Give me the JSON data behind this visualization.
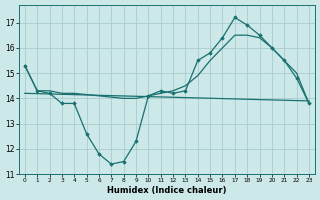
{
  "xlabel": "Humidex (Indice chaleur)",
  "bg_color": "#cce8e8",
  "grid_color": "#aacccc",
  "line_color": "#1a7070",
  "xlim": [
    -0.5,
    23.5
  ],
  "ylim": [
    11,
    17.7
  ],
  "yticks": [
    11,
    12,
    13,
    14,
    15,
    16,
    17
  ],
  "xticks": [
    0,
    1,
    2,
    3,
    4,
    5,
    6,
    7,
    8,
    9,
    10,
    11,
    12,
    13,
    14,
    15,
    16,
    17,
    18,
    19,
    20,
    21,
    22,
    23
  ],
  "line1_x": [
    0,
    1,
    2,
    3,
    4,
    5,
    6,
    7,
    8,
    9,
    10,
    11,
    12,
    13,
    14,
    15,
    16,
    17,
    18,
    19,
    20,
    21,
    22,
    23
  ],
  "line1_y": [
    15.3,
    14.3,
    14.2,
    13.8,
    13.8,
    12.6,
    11.8,
    11.4,
    11.5,
    12.3,
    14.1,
    14.3,
    14.2,
    14.3,
    15.5,
    15.8,
    16.4,
    17.2,
    16.9,
    16.5,
    16.0,
    15.5,
    14.8,
    13.8
  ],
  "line2_x": [
    0,
    1,
    2,
    3,
    4,
    5,
    6,
    7,
    8,
    9,
    10,
    11,
    12,
    13,
    14,
    15,
    16,
    17,
    18,
    19,
    20,
    21,
    22,
    23
  ],
  "line2_y": [
    15.3,
    14.3,
    14.3,
    14.2,
    14.2,
    14.15,
    14.1,
    14.05,
    14.0,
    14.0,
    14.1,
    14.2,
    14.3,
    14.5,
    14.9,
    15.5,
    16.0,
    16.5,
    16.5,
    16.4,
    16.0,
    15.5,
    15.0,
    13.8
  ],
  "line3_x": [
    0,
    23
  ],
  "line3_y": [
    14.2,
    13.9
  ]
}
